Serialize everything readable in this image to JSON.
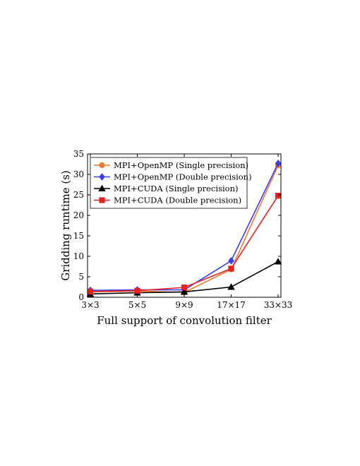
{
  "chart_data": {
    "type": "line",
    "xlabel": "Full support of convolution filter",
    "ylabel": "Gridding runtime (s)",
    "categories": [
      "3×3",
      "5×5",
      "9×9",
      "17×17",
      "33×33"
    ],
    "ylim": [
      0,
      35
    ],
    "yticks": [
      0,
      5,
      10,
      15,
      20,
      25,
      30,
      35
    ],
    "grid": false,
    "legend_position": "top-left",
    "series": [
      {
        "name": "MPI+OpenMP (Single precision)",
        "color": "#f07a2a",
        "marker": "circle",
        "values": [
          1.3,
          1.5,
          1.2,
          6.8,
          32.2
        ]
      },
      {
        "name": "MPI+OpenMP (Double precision)",
        "color": "#3c3cf0",
        "marker": "diamond",
        "values": [
          1.7,
          1.8,
          1.8,
          8.9,
          32.7
        ]
      },
      {
        "name": "MPI+CUDA (Single precision)",
        "color": "#000000",
        "marker": "triangle",
        "values": [
          0.8,
          1.1,
          1.3,
          2.5,
          8.7
        ]
      },
      {
        "name": "MPI+CUDA (Double precision)",
        "color": "#e82020",
        "marker": "square",
        "values": [
          1.4,
          1.6,
          2.4,
          7.0,
          24.8
        ]
      }
    ]
  }
}
